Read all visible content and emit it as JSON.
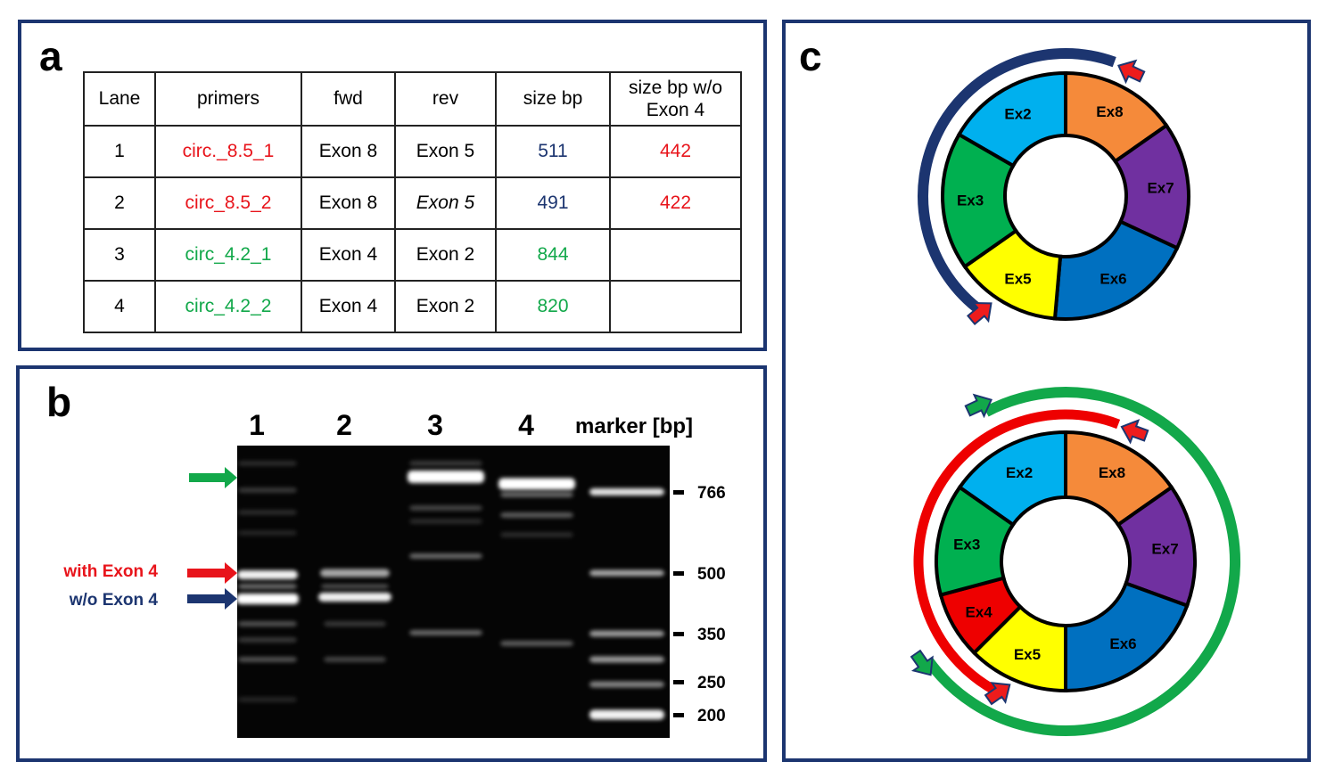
{
  "panel_a": {
    "label": "a",
    "headers": [
      "Lane",
      "primers",
      "fwd",
      "rev",
      "size bp",
      "size bp w/o Exon 4"
    ],
    "rows": [
      {
        "lane": "1",
        "primer": "circ._8.5_1",
        "fwd": "Exon 8",
        "rev": "Exon 5",
        "size": "511",
        "size_wo": "442",
        "primer_color": "#e8141b",
        "size_color": "#1c3570"
      },
      {
        "lane": "2",
        "primer": "circ_8.5_2",
        "fwd": "Exon 8",
        "rev": "Exon 5",
        "size": "491",
        "size_wo": "422",
        "primer_color": "#e8141b",
        "size_color": "#1c3570"
      },
      {
        "lane": "3",
        "primer": "circ_4.2_1",
        "fwd": "Exon 4",
        "rev": "Exon 2",
        "size": "844",
        "size_wo": "",
        "primer_color": "#12a84a",
        "size_color": "#12a84a"
      },
      {
        "lane": "4",
        "primer": "circ_4.2_2",
        "fwd": "Exon 4",
        "rev": "Exon 2",
        "size": "820",
        "size_wo": "",
        "primer_color": "#12a84a",
        "size_color": "#12a84a"
      }
    ]
  },
  "panel_b": {
    "label": "b",
    "lanes": [
      "1",
      "2",
      "3",
      "4"
    ],
    "marker_title": "marker [bp]",
    "marker_ticks": [
      "766",
      "500",
      "350",
      "250",
      "200"
    ],
    "with_exon4": "with Exon 4",
    "wo_exon4": "w/o Exon 4",
    "colors": {
      "with": "#e8141b",
      "wo": "#1c3570",
      "green_arrow": "#12a84a"
    }
  },
  "panel_c": {
    "label": "c",
    "ring_top": {
      "segments": [
        {
          "name": "Ex2",
          "color": "#00b0ee"
        },
        {
          "name": "Ex8",
          "color": "#f58a3a"
        },
        {
          "name": "Ex7",
          "color": "#7030a0"
        },
        {
          "name": "Ex6",
          "color": "#0070c0"
        },
        {
          "name": "Ex5",
          "color": "#ffff00"
        },
        {
          "name": "Ex3",
          "color": "#00b050"
        }
      ],
      "arc_color": "#1c3570"
    },
    "ring_bottom": {
      "segments": [
        {
          "name": "Ex2",
          "color": "#00b0ee"
        },
        {
          "name": "Ex8",
          "color": "#f58a3a"
        },
        {
          "name": "Ex7",
          "color": "#7030a0"
        },
        {
          "name": "Ex6",
          "color": "#0070c0"
        },
        {
          "name": "Ex5",
          "color": "#ffff00"
        },
        {
          "name": "Ex4",
          "color": "#ee0000"
        },
        {
          "name": "Ex3",
          "color": "#00b050"
        }
      ],
      "inner_arc_color": "#ee0000",
      "outer_arc_color": "#12a84a"
    }
  }
}
